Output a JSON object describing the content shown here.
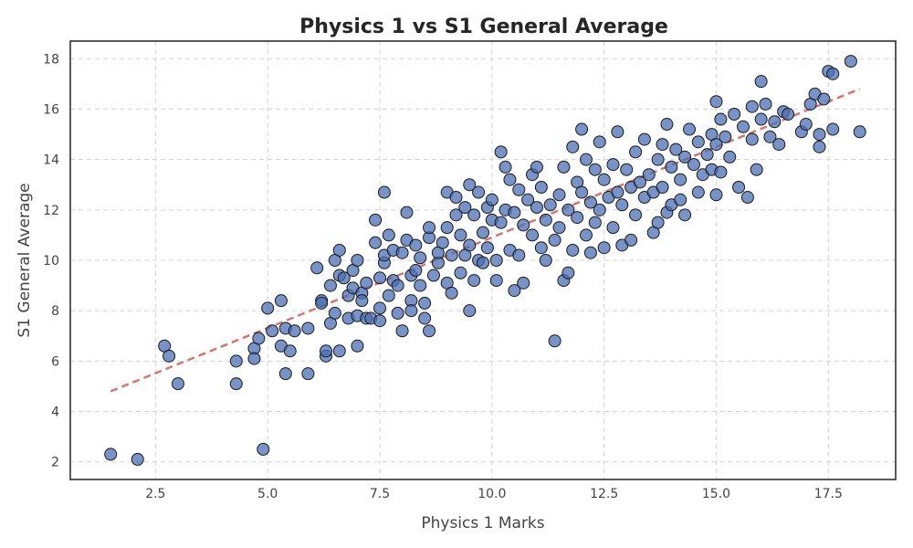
{
  "chart_data": {
    "type": "scatter",
    "title": "Physics 1 vs S1 General Average",
    "xlabel": "Physics 1 Marks",
    "ylabel": "S1 General Average",
    "xlim": [
      0.6,
      19.0
    ],
    "ylim": [
      1.3,
      18.7
    ],
    "xticks": [
      2.5,
      5.0,
      7.5,
      10.0,
      12.5,
      15.0,
      17.5
    ],
    "xtick_labels": [
      "2.5",
      "5.0",
      "7.5",
      "10.0",
      "12.5",
      "15.0",
      "17.5"
    ],
    "yticks": [
      2,
      4,
      6,
      8,
      10,
      12,
      14,
      16,
      18
    ],
    "ytick_labels": [
      "2",
      "4",
      "6",
      "8",
      "10",
      "12",
      "14",
      "16",
      "18"
    ],
    "grid": true,
    "colors": {
      "points": "#4a6fb5",
      "edge": "#1a1a1a",
      "trend": "#d9756f"
    },
    "trend_line": {
      "x": [
        1.5,
        18.2
      ],
      "y": [
        4.8,
        16.8
      ]
    },
    "points": [
      [
        1.5,
        2.3
      ],
      [
        2.1,
        2.1
      ],
      [
        4.9,
        2.5
      ],
      [
        2.7,
        6.6
      ],
      [
        2.8,
        6.2
      ],
      [
        3.0,
        5.1
      ],
      [
        4.3,
        6.0
      ],
      [
        4.3,
        5.1
      ],
      [
        4.7,
        6.5
      ],
      [
        4.7,
        6.1
      ],
      [
        4.8,
        6.9
      ],
      [
        5.0,
        8.1
      ],
      [
        5.1,
        7.2
      ],
      [
        5.3,
        8.4
      ],
      [
        5.3,
        6.6
      ],
      [
        5.4,
        5.5
      ],
      [
        5.4,
        7.3
      ],
      [
        5.5,
        6.4
      ],
      [
        5.6,
        7.2
      ],
      [
        5.9,
        7.3
      ],
      [
        5.9,
        5.5
      ],
      [
        6.1,
        9.7
      ],
      [
        6.2,
        8.4
      ],
      [
        6.2,
        8.3
      ],
      [
        6.3,
        6.2
      ],
      [
        6.3,
        6.4
      ],
      [
        6.4,
        9.0
      ],
      [
        6.4,
        7.5
      ],
      [
        6.5,
        10.0
      ],
      [
        6.5,
        7.9
      ],
      [
        6.6,
        6.4
      ],
      [
        6.6,
        9.4
      ],
      [
        6.6,
        10.4
      ],
      [
        6.7,
        9.3
      ],
      [
        6.8,
        8.6
      ],
      [
        6.8,
        7.7
      ],
      [
        6.9,
        9.6
      ],
      [
        6.9,
        8.9
      ],
      [
        7.0,
        10.0
      ],
      [
        7.0,
        7.8
      ],
      [
        7.0,
        6.6
      ],
      [
        7.1,
        8.7
      ],
      [
        7.1,
        8.4
      ],
      [
        7.2,
        7.7
      ],
      [
        7.2,
        9.1
      ],
      [
        7.3,
        7.7
      ],
      [
        7.4,
        10.7
      ],
      [
        7.4,
        11.6
      ],
      [
        7.5,
        9.3
      ],
      [
        7.5,
        8.1
      ],
      [
        7.5,
        7.6
      ],
      [
        7.6,
        12.7
      ],
      [
        7.6,
        9.9
      ],
      [
        7.6,
        10.2
      ],
      [
        7.7,
        11.0
      ],
      [
        7.7,
        8.6
      ],
      [
        7.8,
        9.2
      ],
      [
        7.8,
        10.4
      ],
      [
        7.9,
        7.9
      ],
      [
        7.9,
        9.0
      ],
      [
        8.0,
        10.3
      ],
      [
        8.0,
        7.2
      ],
      [
        8.1,
        11.9
      ],
      [
        8.1,
        10.8
      ],
      [
        8.2,
        9.4
      ],
      [
        8.2,
        8.4
      ],
      [
        8.2,
        8.0
      ],
      [
        8.3,
        10.6
      ],
      [
        8.3,
        9.6
      ],
      [
        8.4,
        9.0
      ],
      [
        8.4,
        10.1
      ],
      [
        8.5,
        8.3
      ],
      [
        8.5,
        7.7
      ],
      [
        8.6,
        10.9
      ],
      [
        8.6,
        11.3
      ],
      [
        8.6,
        7.2
      ],
      [
        8.7,
        9.4
      ],
      [
        8.8,
        9.9
      ],
      [
        8.8,
        10.3
      ],
      [
        8.9,
        10.7
      ],
      [
        9.0,
        12.7
      ],
      [
        9.0,
        11.3
      ],
      [
        9.0,
        9.1
      ],
      [
        9.1,
        8.7
      ],
      [
        9.1,
        10.2
      ],
      [
        9.2,
        11.8
      ],
      [
        9.2,
        12.5
      ],
      [
        9.3,
        11.0
      ],
      [
        9.3,
        9.5
      ],
      [
        9.4,
        10.2
      ],
      [
        9.4,
        12.1
      ],
      [
        9.5,
        8.0
      ],
      [
        9.5,
        13.0
      ],
      [
        9.5,
        10.6
      ],
      [
        9.6,
        11.8
      ],
      [
        9.6,
        9.2
      ],
      [
        9.7,
        12.7
      ],
      [
        9.7,
        10.0
      ],
      [
        9.8,
        11.1
      ],
      [
        9.8,
        9.9
      ],
      [
        9.9,
        12.1
      ],
      [
        9.9,
        10.5
      ],
      [
        10.0,
        11.6
      ],
      [
        10.0,
        12.4
      ],
      [
        10.1,
        10.0
      ],
      [
        10.1,
        9.2
      ],
      [
        10.2,
        14.3
      ],
      [
        10.2,
        11.5
      ],
      [
        10.3,
        13.7
      ],
      [
        10.3,
        12.0
      ],
      [
        10.4,
        10.4
      ],
      [
        10.4,
        13.2
      ],
      [
        10.5,
        8.8
      ],
      [
        10.5,
        11.9
      ],
      [
        10.6,
        12.8
      ],
      [
        10.6,
        10.2
      ],
      [
        10.7,
        9.1
      ],
      [
        10.7,
        11.4
      ],
      [
        10.8,
        12.4
      ],
      [
        10.9,
        11.0
      ],
      [
        10.9,
        13.4
      ],
      [
        11.0,
        13.7
      ],
      [
        11.0,
        12.1
      ],
      [
        11.1,
        10.5
      ],
      [
        11.1,
        12.9
      ],
      [
        11.2,
        11.6
      ],
      [
        11.2,
        10.0
      ],
      [
        11.3,
        12.2
      ],
      [
        11.4,
        10.8
      ],
      [
        11.4,
        6.8
      ],
      [
        11.5,
        12.6
      ],
      [
        11.5,
        11.3
      ],
      [
        11.6,
        13.7
      ],
      [
        11.6,
        9.2
      ],
      [
        11.7,
        9.5
      ],
      [
        11.7,
        12.0
      ],
      [
        11.8,
        10.4
      ],
      [
        11.8,
        14.5
      ],
      [
        11.9,
        11.7
      ],
      [
        11.9,
        13.1
      ],
      [
        12.0,
        15.2
      ],
      [
        12.0,
        12.7
      ],
      [
        12.1,
        11.0
      ],
      [
        12.1,
        14.0
      ],
      [
        12.2,
        10.3
      ],
      [
        12.2,
        12.3
      ],
      [
        12.3,
        13.6
      ],
      [
        12.3,
        11.5
      ],
      [
        12.4,
        14.7
      ],
      [
        12.4,
        12.0
      ],
      [
        12.5,
        10.5
      ],
      [
        12.5,
        13.2
      ],
      [
        12.6,
        12.5
      ],
      [
        12.7,
        11.3
      ],
      [
        12.7,
        13.8
      ],
      [
        12.8,
        12.7
      ],
      [
        12.8,
        15.1
      ],
      [
        12.9,
        10.6
      ],
      [
        12.9,
        12.2
      ],
      [
        13.0,
        13.6
      ],
      [
        13.1,
        10.8
      ],
      [
        13.1,
        12.9
      ],
      [
        13.2,
        14.3
      ],
      [
        13.2,
        11.8
      ],
      [
        13.3,
        13.1
      ],
      [
        13.4,
        14.8
      ],
      [
        13.4,
        12.5
      ],
      [
        13.5,
        13.4
      ],
      [
        13.6,
        11.1
      ],
      [
        13.6,
        12.7
      ],
      [
        13.7,
        14.0
      ],
      [
        13.7,
        11.5
      ],
      [
        13.8,
        12.9
      ],
      [
        13.8,
        14.6
      ],
      [
        13.9,
        15.4
      ],
      [
        13.9,
        11.9
      ],
      [
        14.0,
        13.7
      ],
      [
        14.0,
        12.2
      ],
      [
        14.1,
        14.4
      ],
      [
        14.2,
        13.2
      ],
      [
        14.2,
        12.4
      ],
      [
        14.3,
        11.8
      ],
      [
        14.3,
        14.1
      ],
      [
        14.4,
        15.2
      ],
      [
        14.5,
        13.8
      ],
      [
        14.6,
        14.7
      ],
      [
        14.6,
        12.7
      ],
      [
        14.7,
        13.4
      ],
      [
        14.8,
        14.2
      ],
      [
        14.9,
        15.0
      ],
      [
        14.9,
        13.6
      ],
      [
        15.0,
        16.3
      ],
      [
        15.0,
        14.6
      ],
      [
        15.0,
        12.6
      ],
      [
        15.1,
        15.6
      ],
      [
        15.1,
        13.5
      ],
      [
        15.2,
        14.9
      ],
      [
        15.3,
        14.1
      ],
      [
        15.4,
        15.8
      ],
      [
        15.5,
        12.9
      ],
      [
        15.6,
        15.3
      ],
      [
        15.7,
        12.5
      ],
      [
        15.8,
        16.1
      ],
      [
        15.8,
        14.8
      ],
      [
        15.9,
        13.6
      ],
      [
        16.0,
        15.6
      ],
      [
        16.0,
        17.1
      ],
      [
        16.1,
        16.2
      ],
      [
        16.2,
        14.9
      ],
      [
        16.3,
        15.5
      ],
      [
        16.4,
        14.6
      ],
      [
        16.5,
        15.9
      ],
      [
        16.6,
        15.8
      ],
      [
        16.9,
        15.1
      ],
      [
        17.0,
        15.4
      ],
      [
        17.1,
        16.2
      ],
      [
        17.2,
        16.6
      ],
      [
        17.3,
        15.0
      ],
      [
        17.3,
        14.5
      ],
      [
        17.4,
        16.4
      ],
      [
        17.5,
        17.5
      ],
      [
        17.6,
        17.4
      ],
      [
        17.6,
        15.2
      ],
      [
        18.0,
        17.9
      ],
      [
        18.2,
        15.1
      ]
    ]
  }
}
